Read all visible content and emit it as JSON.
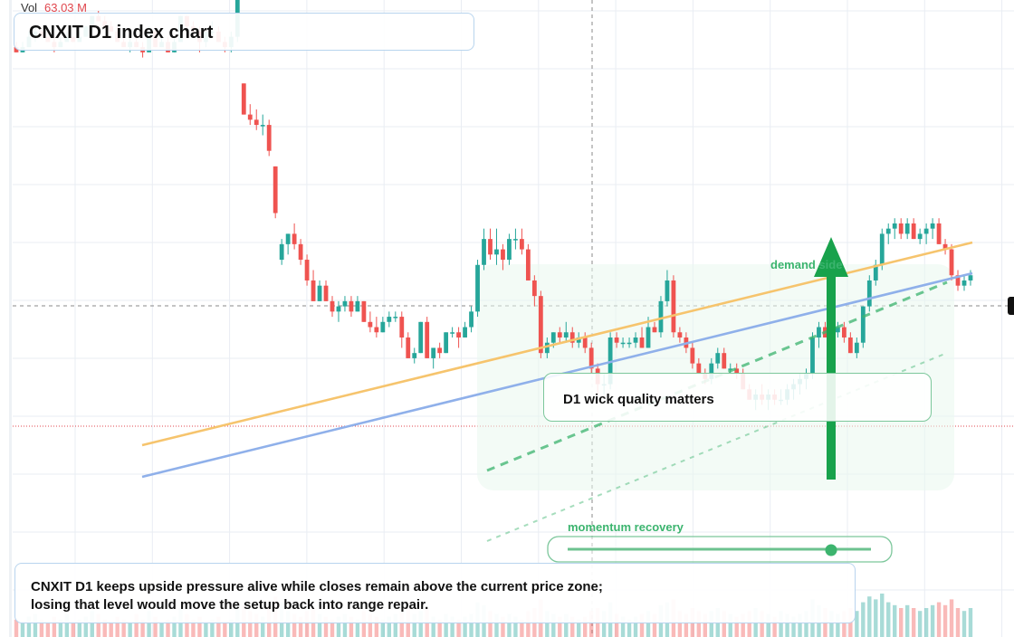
{
  "header": {
    "volume_label": "Vol",
    "volume_value": "63.03 M"
  },
  "title": "CNXIT D1 index chart",
  "annotations": {
    "note": "D1 wick quality matters",
    "demand_label": "demand side",
    "momentum_label": "momentum recovery"
  },
  "caption": {
    "line1": "CNXIT D1 keeps upside pressure alive while closes remain above the current price zone;",
    "line2": "losing that level would move the setup back into range repair."
  },
  "colors": {
    "up": "#26a69a",
    "down": "#ef5350",
    "trend_orange": "#f6c46d",
    "trend_blue": "#8fb0ea",
    "channel_green": "#3cb46e",
    "arrow_green": "#18a24c",
    "grid": "#e9edf3"
  },
  "chart_data": {
    "type": "candlestick",
    "title": "CNXIT D1 index chart",
    "xlabel": "",
    "ylabel": "",
    "price_scale": "hidden",
    "grid": true,
    "candles": [
      [
        0.93,
        0.94,
        0.92,
        0.92
      ],
      [
        0.92,
        0.94,
        0.92,
        0.93
      ],
      [
        0.93,
        0.96,
        0.93,
        0.95
      ],
      [
        0.95,
        0.97,
        0.94,
        0.96
      ],
      [
        0.96,
        0.97,
        0.95,
        0.95
      ],
      [
        0.95,
        0.96,
        0.94,
        0.94
      ],
      [
        0.94,
        0.95,
        0.92,
        0.93
      ],
      [
        0.93,
        0.95,
        0.93,
        0.94
      ],
      [
        0.94,
        0.96,
        0.94,
        0.95
      ],
      [
        0.95,
        0.95,
        0.94,
        0.94
      ],
      [
        0.94,
        0.96,
        0.94,
        0.95
      ],
      [
        0.95,
        0.97,
        0.95,
        0.97
      ],
      [
        0.97,
        0.99,
        0.96,
        0.99
      ],
      [
        0.99,
        1.0,
        0.98,
        0.98
      ],
      [
        0.98,
        0.99,
        0.97,
        0.97
      ],
      [
        0.97,
        0.98,
        0.96,
        0.96
      ],
      [
        0.96,
        0.97,
        0.94,
        0.94
      ],
      [
        0.94,
        0.95,
        0.93,
        0.93
      ],
      [
        0.93,
        0.95,
        0.92,
        0.94
      ],
      [
        0.94,
        0.95,
        0.93,
        0.93
      ],
      [
        0.93,
        0.94,
        0.91,
        0.92
      ],
      [
        0.92,
        0.97,
        0.92,
        0.96
      ],
      [
        0.96,
        0.97,
        0.93,
        0.93
      ],
      [
        0.93,
        0.95,
        0.93,
        0.94
      ],
      [
        0.94,
        0.95,
        0.92,
        0.92
      ],
      [
        0.92,
        0.95,
        0.92,
        0.94
      ],
      [
        0.94,
        0.99,
        0.94,
        0.99
      ],
      [
        0.99,
        0.99,
        0.96,
        0.97
      ],
      [
        0.97,
        0.98,
        0.95,
        0.96
      ],
      [
        0.96,
        0.97,
        0.92,
        0.94
      ],
      [
        0.94,
        0.96,
        0.93,
        0.96
      ],
      [
        0.96,
        0.98,
        0.95,
        0.96
      ],
      [
        0.96,
        0.97,
        0.94,
        0.94
      ],
      [
        0.94,
        0.95,
        0.92,
        0.93
      ],
      [
        0.93,
        0.96,
        0.92,
        0.95
      ],
      [
        0.95,
        1.03,
        0.94,
        1.03
      ],
      [
        0.86,
        0.86,
        0.8,
        0.8
      ],
      [
        0.8,
        0.82,
        0.78,
        0.79
      ],
      [
        0.79,
        0.81,
        0.77,
        0.78
      ],
      [
        0.78,
        0.8,
        0.76,
        0.78
      ],
      [
        0.78,
        0.79,
        0.72,
        0.73
      ],
      [
        0.7,
        0.7,
        0.6,
        0.61
      ],
      [
        0.52,
        0.56,
        0.51,
        0.55
      ],
      [
        0.55,
        0.57,
        0.53,
        0.57
      ],
      [
        0.57,
        0.59,
        0.54,
        0.55
      ],
      [
        0.55,
        0.56,
        0.51,
        0.52
      ],
      [
        0.52,
        0.53,
        0.47,
        0.48
      ],
      [
        0.48,
        0.5,
        0.44,
        0.44
      ],
      [
        0.44,
        0.48,
        0.44,
        0.47
      ],
      [
        0.47,
        0.48,
        0.44,
        0.44
      ],
      [
        0.44,
        0.45,
        0.41,
        0.42
      ],
      [
        0.42,
        0.44,
        0.4,
        0.43
      ],
      [
        0.43,
        0.45,
        0.42,
        0.44
      ],
      [
        0.44,
        0.45,
        0.41,
        0.42
      ],
      [
        0.42,
        0.45,
        0.42,
        0.44
      ],
      [
        0.44,
        0.44,
        0.4,
        0.4
      ],
      [
        0.4,
        0.42,
        0.38,
        0.39
      ],
      [
        0.39,
        0.41,
        0.37,
        0.38
      ],
      [
        0.38,
        0.41,
        0.38,
        0.4
      ],
      [
        0.4,
        0.42,
        0.39,
        0.41
      ],
      [
        0.41,
        0.42,
        0.4,
        0.41
      ],
      [
        0.41,
        0.42,
        0.35,
        0.37
      ],
      [
        0.37,
        0.38,
        0.33,
        0.33
      ],
      [
        0.33,
        0.35,
        0.32,
        0.34
      ],
      [
        0.34,
        0.4,
        0.34,
        0.4
      ],
      [
        0.4,
        0.41,
        0.33,
        0.33
      ],
      [
        0.33,
        0.35,
        0.31,
        0.35
      ],
      [
        0.35,
        0.36,
        0.33,
        0.34
      ],
      [
        0.34,
        0.38,
        0.34,
        0.38
      ],
      [
        0.38,
        0.39,
        0.37,
        0.38
      ],
      [
        0.38,
        0.39,
        0.35,
        0.37
      ],
      [
        0.37,
        0.4,
        0.37,
        0.39
      ],
      [
        0.39,
        0.43,
        0.38,
        0.42
      ],
      [
        0.42,
        0.52,
        0.41,
        0.51
      ],
      [
        0.51,
        0.58,
        0.5,
        0.56
      ],
      [
        0.56,
        0.58,
        0.52,
        0.53
      ],
      [
        0.53,
        0.58,
        0.51,
        0.54
      ],
      [
        0.54,
        0.55,
        0.5,
        0.52
      ],
      [
        0.52,
        0.57,
        0.51,
        0.56
      ],
      [
        0.56,
        0.58,
        0.54,
        0.56
      ],
      [
        0.56,
        0.58,
        0.53,
        0.54
      ],
      [
        0.54,
        0.55,
        0.48,
        0.48
      ],
      [
        0.48,
        0.49,
        0.43,
        0.45
      ],
      [
        0.45,
        0.46,
        0.33,
        0.34
      ],
      [
        0.34,
        0.37,
        0.33,
        0.36
      ],
      [
        0.36,
        0.38,
        0.35,
        0.38
      ],
      [
        0.38,
        0.39,
        0.36,
        0.37
      ],
      [
        0.37,
        0.4,
        0.36,
        0.38
      ],
      [
        0.38,
        0.39,
        0.35,
        0.36
      ],
      [
        0.36,
        0.38,
        0.35,
        0.37
      ],
      [
        0.37,
        0.38,
        0.34,
        0.35
      ],
      [
        0.35,
        0.36,
        0.3,
        0.31
      ],
      [
        0.31,
        0.32,
        0.26,
        0.28
      ],
      [
        0.28,
        0.3,
        0.26,
        0.28
      ],
      [
        0.28,
        0.38,
        0.27,
        0.37
      ],
      [
        0.37,
        0.38,
        0.35,
        0.36
      ],
      [
        0.36,
        0.37,
        0.35,
        0.36
      ],
      [
        0.36,
        0.37,
        0.35,
        0.36
      ],
      [
        0.36,
        0.38,
        0.35,
        0.37
      ],
      [
        0.37,
        0.39,
        0.35,
        0.35
      ],
      [
        0.35,
        0.41,
        0.35,
        0.39
      ],
      [
        0.39,
        0.4,
        0.38,
        0.38
      ],
      [
        0.38,
        0.45,
        0.37,
        0.44
      ],
      [
        0.44,
        0.5,
        0.43,
        0.48
      ],
      [
        0.48,
        0.49,
        0.37,
        0.38
      ],
      [
        0.38,
        0.39,
        0.36,
        0.37
      ],
      [
        0.37,
        0.38,
        0.34,
        0.35
      ],
      [
        0.35,
        0.36,
        0.31,
        0.32
      ],
      [
        0.32,
        0.33,
        0.3,
        0.3
      ],
      [
        0.3,
        0.31,
        0.28,
        0.29
      ],
      [
        0.29,
        0.33,
        0.28,
        0.32
      ],
      [
        0.32,
        0.35,
        0.31,
        0.34
      ],
      [
        0.34,
        0.35,
        0.31,
        0.31
      ],
      [
        0.31,
        0.32,
        0.3,
        0.31
      ],
      [
        0.31,
        0.32,
        0.29,
        0.3
      ],
      [
        0.3,
        0.31,
        0.27,
        0.27
      ],
      [
        0.27,
        0.28,
        0.25,
        0.25
      ],
      [
        0.25,
        0.27,
        0.23,
        0.26
      ],
      [
        0.26,
        0.28,
        0.24,
        0.25
      ],
      [
        0.25,
        0.27,
        0.23,
        0.26
      ],
      [
        0.26,
        0.27,
        0.24,
        0.25
      ],
      [
        0.25,
        0.27,
        0.24,
        0.25
      ],
      [
        0.25,
        0.28,
        0.24,
        0.27
      ],
      [
        0.27,
        0.29,
        0.25,
        0.28
      ],
      [
        0.28,
        0.3,
        0.26,
        0.29
      ],
      [
        0.29,
        0.31,
        0.27,
        0.3
      ],
      [
        0.3,
        0.38,
        0.29,
        0.37
      ],
      [
        0.37,
        0.4,
        0.35,
        0.39
      ],
      [
        0.39,
        0.4,
        0.37,
        0.37
      ],
      [
        0.37,
        0.39,
        0.36,
        0.38
      ],
      [
        0.38,
        0.4,
        0.37,
        0.39
      ],
      [
        0.39,
        0.4,
        0.36,
        0.37
      ],
      [
        0.37,
        0.38,
        0.34,
        0.34
      ],
      [
        0.34,
        0.37,
        0.33,
        0.36
      ],
      [
        0.36,
        0.43,
        0.35,
        0.43
      ],
      [
        0.43,
        0.49,
        0.42,
        0.48
      ],
      [
        0.48,
        0.52,
        0.47,
        0.51
      ],
      [
        0.51,
        0.58,
        0.5,
        0.57
      ],
      [
        0.57,
        0.59,
        0.55,
        0.58
      ],
      [
        0.58,
        0.6,
        0.56,
        0.59
      ],
      [
        0.59,
        0.6,
        0.56,
        0.57
      ],
      [
        0.57,
        0.6,
        0.56,
        0.59
      ],
      [
        0.59,
        0.6,
        0.56,
        0.56
      ],
      [
        0.56,
        0.58,
        0.55,
        0.57
      ],
      [
        0.57,
        0.59,
        0.55,
        0.58
      ],
      [
        0.58,
        0.6,
        0.56,
        0.59
      ],
      [
        0.59,
        0.6,
        0.55,
        0.55
      ],
      [
        0.55,
        0.56,
        0.53,
        0.54
      ],
      [
        0.54,
        0.55,
        0.48,
        0.49
      ],
      [
        0.49,
        0.5,
        0.46,
        0.47
      ],
      [
        0.47,
        0.49,
        0.46,
        0.48
      ],
      [
        0.48,
        0.5,
        0.47,
        0.49
      ]
    ],
    "volume": [
      6,
      5,
      7,
      8,
      6,
      5,
      7,
      6,
      8,
      5,
      6,
      7,
      9,
      8,
      6,
      5,
      7,
      6,
      5,
      8,
      6,
      9,
      7,
      5,
      6,
      7,
      10,
      8,
      6,
      7,
      5,
      6,
      7,
      5,
      6,
      12,
      11,
      9,
      8,
      7,
      10,
      14,
      12,
      9,
      8,
      7,
      9,
      10,
      8,
      7,
      6,
      7,
      8,
      7,
      6,
      9,
      8,
      7,
      6,
      7,
      8,
      9,
      10,
      8,
      9,
      10,
      7,
      6,
      8,
      7,
      6,
      7,
      8,
      12,
      11,
      9,
      8,
      7,
      8,
      7,
      6,
      9,
      10,
      13,
      9,
      8,
      7,
      8,
      7,
      6,
      7,
      9,
      10,
      9,
      12,
      8,
      7,
      6,
      7,
      8,
      9,
      8,
      11,
      12,
      13,
      9,
      8,
      10,
      9,
      8,
      9,
      10,
      9,
      8,
      7,
      8,
      9,
      10,
      9,
      8,
      7,
      9,
      8,
      7,
      8,
      9,
      13,
      11,
      10,
      9,
      8,
      9,
      10,
      9,
      12,
      14,
      13,
      15,
      12,
      11,
      10,
      11,
      10,
      9,
      10,
      11,
      12,
      11,
      13,
      10,
      9,
      10
    ],
    "trendlines": [
      {
        "from": [
          14,
          0.36
        ],
        "to": [
          151,
          0.69
        ]
      },
      {
        "from": [
          14,
          0.3
        ],
        "to": [
          151,
          0.63
        ]
      }
    ]
  }
}
